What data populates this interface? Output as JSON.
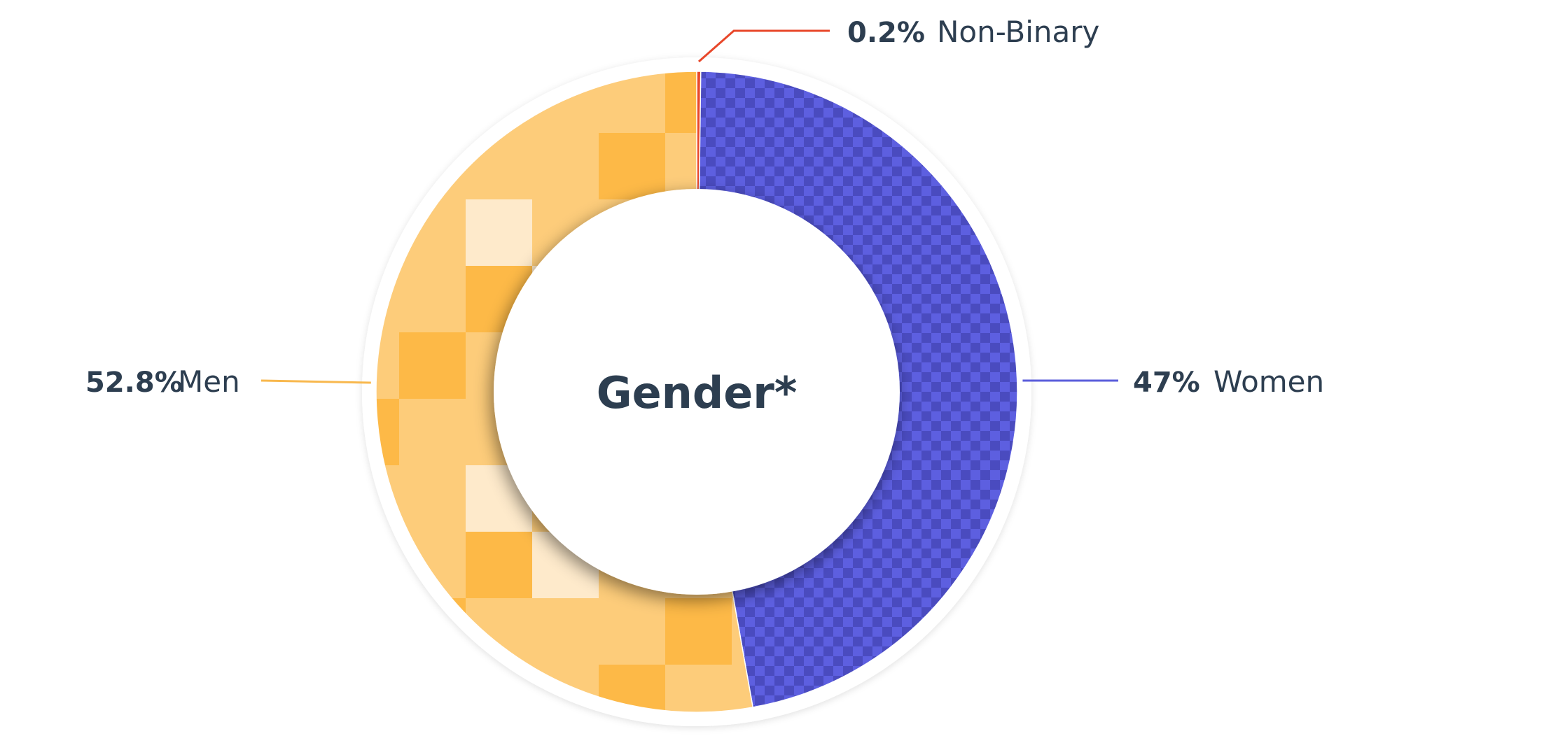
{
  "chart_data": {
    "type": "pie",
    "title": "Gender*",
    "categories": [
      "Non-Binary",
      "Women",
      "Men"
    ],
    "values": [
      0.2,
      47,
      52.8
    ],
    "value_labels": [
      "0.2%",
      "47%",
      "52.8%"
    ],
    "colors": {
      "Non-Binary": "#e8472a",
      "Women": "#5a5ddb",
      "Men": "#fdcc7a"
    },
    "legend": false,
    "text_color": "#2d3e50"
  }
}
